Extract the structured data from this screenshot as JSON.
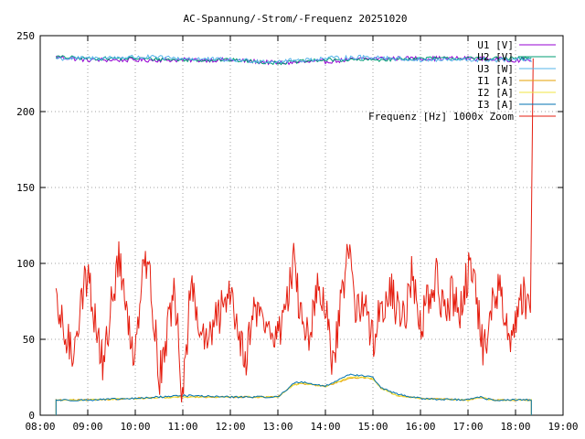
{
  "chart_data": {
    "type": "line",
    "title": "AC-Spannung/-Strom/-Frequenz 20251020",
    "xlabel": "",
    "ylabel": "",
    "xlim": [
      "08:00",
      "19:00"
    ],
    "ylim": [
      0,
      250
    ],
    "grid": true,
    "legend_position": "top-right",
    "x_ticks": [
      "08:00",
      "09:00",
      "10:00",
      "11:00",
      "12:00",
      "13:00",
      "14:00",
      "15:00",
      "16:00",
      "17:00",
      "18:00",
      "19:00"
    ],
    "y_ticks": [
      "0",
      "50",
      "100",
      "150",
      "200",
      "250"
    ],
    "x_knots": [
      "08:20",
      "09:00",
      "10:00",
      "11:00",
      "12:00",
      "13:00",
      "13:20",
      "13:30",
      "14:00",
      "14:30",
      "14:45",
      "15:00",
      "15:10",
      "15:30",
      "16:00",
      "17:00",
      "17:15",
      "17:30",
      "18:00",
      "18:20"
    ],
    "series": [
      {
        "name": "U1 [V]",
        "color": "#9400d3",
        "x": [
          "08:20",
          "09:00",
          "10:00",
          "11:00",
          "12:00",
          "13:00",
          "14:00",
          "15:00",
          "16:00",
          "17:00",
          "18:00",
          "18:20"
        ],
        "values": [
          236,
          234,
          234,
          234,
          234,
          232,
          233,
          235,
          235,
          235,
          234,
          234
        ],
        "noise": 1.5
      },
      {
        "name": "U2 [V]",
        "color": "#009e73",
        "x": [
          "08:20",
          "09:00",
          "10:00",
          "11:00",
          "12:00",
          "13:00",
          "14:00",
          "15:00",
          "16:00",
          "17:00",
          "18:00",
          "18:20"
        ],
        "values": [
          236,
          235,
          235,
          234,
          234,
          232,
          234,
          234,
          235,
          235,
          235,
          235
        ],
        "noise": 1.2
      },
      {
        "name": "U3 [W]",
        "color": "#56b4e9",
        "x": [
          "08:20",
          "09:00",
          "10:00",
          "11:00",
          "12:00",
          "13:00",
          "14:00",
          "15:00",
          "16:00",
          "17:00",
          "18:00",
          "18:20"
        ],
        "values": [
          235,
          235,
          236,
          235,
          234,
          233,
          235,
          236,
          234,
          234,
          234,
          234
        ],
        "noise": 1.5
      },
      {
        "name": "I1 [A]",
        "color": "#e69f00",
        "x": [
          "08:20",
          "09:00",
          "10:00",
          "11:00",
          "12:00",
          "13:00",
          "13:20",
          "13:30",
          "14:00",
          "14:30",
          "14:45",
          "15:00",
          "15:10",
          "15:30",
          "16:00",
          "17:00",
          "17:15",
          "17:30",
          "18:00",
          "18:20"
        ],
        "values": [
          10,
          10,
          11,
          12,
          12,
          12,
          20,
          21,
          19,
          24,
          25,
          24,
          18,
          13,
          11,
          10,
          12,
          10,
          10,
          10
        ],
        "noise": 0.5
      },
      {
        "name": "I2 [A]",
        "color": "#f0e442",
        "x": [
          "08:20",
          "09:00",
          "10:00",
          "11:00",
          "12:00",
          "13:00",
          "13:20",
          "13:30",
          "14:00",
          "14:30",
          "14:45",
          "15:00",
          "15:10",
          "15:30",
          "16:00",
          "17:00",
          "17:15",
          "17:30",
          "18:00",
          "18:20"
        ],
        "values": [
          10,
          10,
          11,
          12,
          12,
          12,
          20,
          21,
          19,
          25,
          25,
          24,
          18,
          13,
          11,
          10,
          12,
          10,
          10,
          10
        ],
        "noise": 0.5
      },
      {
        "name": "I3 [A]",
        "color": "#0072b2",
        "x": [
          "08:20",
          "09:00",
          "10:00",
          "11:00",
          "12:00",
          "13:00",
          "13:20",
          "13:30",
          "14:00",
          "14:30",
          "14:45",
          "15:00",
          "15:10",
          "15:30",
          "16:00",
          "17:00",
          "17:15",
          "17:30",
          "18:00",
          "18:20"
        ],
        "values": [
          10,
          10,
          11,
          13,
          12,
          12,
          21,
          22,
          19,
          27,
          26,
          25,
          18,
          14,
          11,
          10,
          12,
          10,
          10,
          10
        ],
        "noise": 0.6
      },
      {
        "name": "Frequenz [Hz] 1000x Zoom",
        "color": "#e51e10",
        "x": [
          "08:20",
          "08:30",
          "08:40",
          "08:50",
          "09:00",
          "09:10",
          "09:20",
          "09:30",
          "09:40",
          "09:50",
          "10:00",
          "10:10",
          "10:20",
          "10:30",
          "10:40",
          "10:50",
          "11:00",
          "11:10",
          "11:20",
          "11:30",
          "11:40",
          "11:50",
          "12:00",
          "12:10",
          "12:20",
          "12:30",
          "12:40",
          "12:50",
          "13:00",
          "13:10",
          "13:20",
          "13:30",
          "13:40",
          "13:50",
          "14:00",
          "14:10",
          "14:20",
          "14:30",
          "14:40",
          "14:50",
          "15:00",
          "15:10",
          "15:20",
          "15:30",
          "15:40",
          "15:50",
          "16:00",
          "16:10",
          "16:20",
          "16:30",
          "16:40",
          "16:50",
          "17:00",
          "17:10",
          "17:20",
          "17:30",
          "17:40",
          "17:50",
          "18:00",
          "18:10",
          "18:20"
        ],
        "values": [
          70,
          55,
          40,
          70,
          95,
          60,
          30,
          75,
          105,
          60,
          40,
          110,
          85,
          25,
          55,
          80,
          10,
          85,
          60,
          45,
          60,
          70,
          85,
          55,
          40,
          70,
          65,
          55,
          50,
          75,
          100,
          60,
          55,
          80,
          70,
          30,
          75,
          110,
          65,
          75,
          50,
          70,
          85,
          70,
          65,
          95,
          60,
          75,
          90,
          65,
          80,
          70,
          95,
          80,
          40,
          70,
          85,
          50,
          65,
          80,
          70
        ],
        "noise": 14
      }
    ]
  }
}
